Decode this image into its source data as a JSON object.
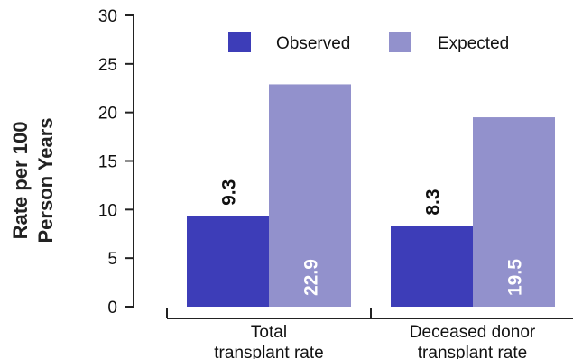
{
  "chart_data": {
    "type": "bar",
    "title": "",
    "xlabel": "",
    "ylabel_lines": [
      "Rate per 100",
      "Person Years"
    ],
    "ylim": [
      0,
      30
    ],
    "yticks": [
      0,
      5,
      10,
      15,
      20,
      25,
      30
    ],
    "categories": [
      [
        "Total",
        "transplant rate"
      ],
      [
        "Deceased donor",
        "transplant rate"
      ]
    ],
    "series": [
      {
        "name": "Observed",
        "values": [
          9.3,
          8.3
        ],
        "labels": [
          "9.3",
          "8.3"
        ],
        "color": "#3d3db8",
        "label_color": "#111111",
        "label_position": "above"
      },
      {
        "name": "Expected",
        "values": [
          22.9,
          19.5
        ],
        "labels": [
          "22.9",
          "19.5"
        ],
        "color": "#9291cc",
        "label_color": "#ffffff",
        "label_position": "inside-bottom"
      }
    ],
    "legend": "top-right",
    "grid": false
  }
}
